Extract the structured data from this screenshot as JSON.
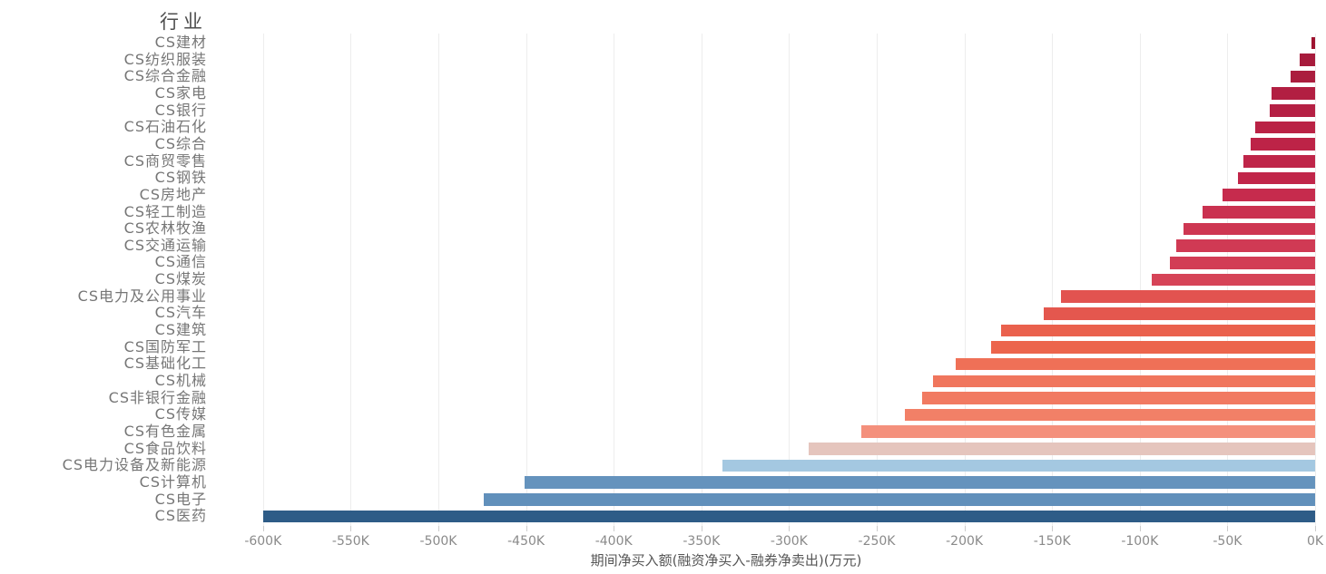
{
  "chart_data": {
    "type": "bar",
    "orientation": "horizontal",
    "title": "行业",
    "xlabel": "期间净买入额(融资净买入-融券净卖出)(万元)",
    "value_unit": "K (万元)",
    "xlim": [
      -600,
      0
    ],
    "grid": true,
    "x_ticks": [
      "-600K",
      "-550K",
      "-500K",
      "-450K",
      "-400K",
      "-350K",
      "-300K",
      "-250K",
      "-200K",
      "-150K",
      "-100K",
      "-50K",
      "0K"
    ],
    "x_tick_values": [
      -600,
      -550,
      -500,
      -450,
      -400,
      -350,
      -300,
      -250,
      -200,
      -150,
      -100,
      -50,
      0
    ],
    "categories": [
      "CS建材",
      "CS纺织服装",
      "CS综合金融",
      "CS家电",
      "CS银行",
      "CS石油石化",
      "CS综合",
      "CS商贸零售",
      "CS钢铁",
      "CS房地产",
      "CS轻工制造",
      "CS农林牧渔",
      "CS交通运输",
      "CS通信",
      "CS煤炭",
      "CS电力及公用事业",
      "CS汽车",
      "CS建筑",
      "CS国防军工",
      "CS基础化工",
      "CS机械",
      "CS非银行金融",
      "CS传媒",
      "CS有色金属",
      "CS食品饮料",
      "CS电力设备及新能源",
      "CS计算机",
      "CS电子",
      "CS医药"
    ],
    "values": [
      -2,
      -9,
      -14,
      -25,
      -26,
      -34,
      -37,
      -41,
      -44,
      -53,
      -64,
      -75,
      -79,
      -83,
      -93,
      -145,
      -155,
      -179,
      -185,
      -205,
      -218,
      -224,
      -234,
      -259,
      -289,
      -338,
      -451,
      -474,
      -600
    ],
    "bar_colors": [
      "#9e1430",
      "#a71b3c",
      "#ab1d3e",
      "#b21f42",
      "#b52044",
      "#ba2245",
      "#bd2347",
      "#bf2549",
      "#c1264a",
      "#c62b4d",
      "#ca3150",
      "#ce3752",
      "#d03a54",
      "#d23d55",
      "#d64357",
      "#e25350",
      "#e4574e",
      "#ea614d",
      "#ec654c",
      "#ef7057",
      "#f0765d",
      "#f17a61",
      "#f28067",
      "#f4907c",
      "#e5c5bd",
      "#a4c8e1",
      "#6593bd",
      "#6190bb",
      "#2e5c87"
    ],
    "colors": {
      "grid": "#ededed",
      "tick_label": "#8a8a8a",
      "category_label": "#767676",
      "axis_title": "#555555",
      "column_title": "#4d4d4d"
    }
  }
}
